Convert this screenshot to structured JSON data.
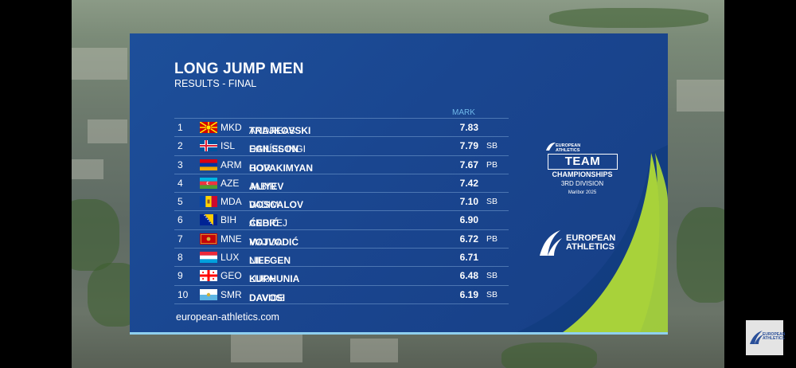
{
  "graphic": {
    "title": "LONG JUMP MEN",
    "subtitle": "RESULTS - FINAL",
    "mark_header": "MARK",
    "url": "european-athletics.com",
    "colors": {
      "panel": "#1a4690",
      "accent_green": "#a8d23a",
      "line": "#8fd0ef"
    }
  },
  "results": [
    {
      "rank": "1",
      "flag": "mkd-flag",
      "nat": "MKD",
      "first": "ANDREAS",
      "last": "TRAJKOVSKI",
      "mark": "7.83",
      "note": ""
    },
    {
      "rank": "2",
      "flag": "isl-flag",
      "nat": "ISL",
      "first": "DANÍEL INGI",
      "last": "EGILSSON",
      "mark": "7.79",
      "note": "SB"
    },
    {
      "rank": "3",
      "flag": "arm-flag",
      "nat": "ARM",
      "first": "GOR",
      "last": "HOVAKIMYAN",
      "mark": "7.67",
      "note": "PB"
    },
    {
      "rank": "4",
      "flag": "aze-flag",
      "nat": "AZE",
      "first": "JABIR",
      "last": "ALIYEV",
      "mark": "7.42",
      "note": ""
    },
    {
      "rank": "5",
      "flag": "mda-flag",
      "nat": "MDA",
      "first": "VADIM",
      "last": "DOSCALOV",
      "mark": "7.10",
      "note": "SB"
    },
    {
      "rank": "6",
      "flag": "bih-flag",
      "nat": "BIH",
      "first": "ANDREJ",
      "last": "ĆEBIĆ",
      "mark": "6.90",
      "note": ""
    },
    {
      "rank": "7",
      "flag": "mne-flag",
      "nat": "MNE",
      "first": "MATIJA",
      "last": "VOJVODIĆ",
      "mark": "6.72",
      "note": "PB"
    },
    {
      "rank": "8",
      "flag": "lux-flag",
      "nat": "LUX",
      "first": "NILS",
      "last": "LIEFGEN",
      "mark": "6.71",
      "note": ""
    },
    {
      "rank": "9",
      "flag": "geo-flag",
      "nat": "GEO",
      "first": "LUKA",
      "last": "KUPHUNIA",
      "mark": "6.48",
      "note": "SB"
    },
    {
      "rank": "10",
      "flag": "smr-flag",
      "nat": "SMR",
      "first": "DAVIDE",
      "last": "DAVOSI",
      "mark": "6.19",
      "note": "SB"
    }
  ],
  "team_logo": {
    "line1": "EUROPEAN",
    "line2": "ATHLETICS",
    "badge": "TEAM",
    "championships": "CHAMPIONSHIPS",
    "division": "3RD DIVISION",
    "city": "Maribor 2025"
  },
  "ea_logo": {
    "line1": "EUROPEAN",
    "line2": "ATHLETICS"
  },
  "corner_logo": {
    "line1": "EUROPEAN",
    "line2": "ATHLETICS"
  }
}
